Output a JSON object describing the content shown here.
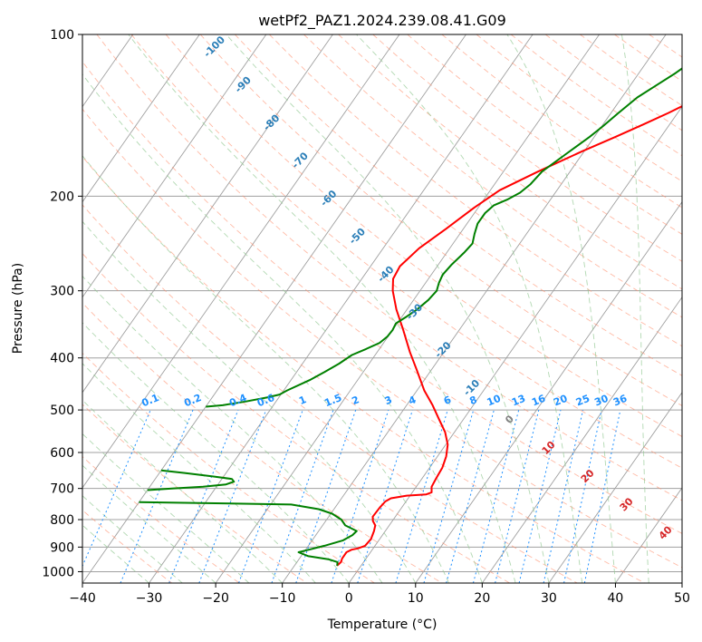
{
  "chart_data": {
    "type": "line",
    "title": "wetPf2_PAZ1.2024.239.08.41.G09",
    "xlabel": "Temperature (°C)",
    "ylabel": "Pressure (hPa)",
    "xlim": [
      -40,
      50
    ],
    "ylim": [
      1050,
      100
    ],
    "y_scale": "log",
    "grid": true,
    "x_ticks": [
      "−40",
      "−30",
      "−20",
      "−10",
      "0",
      "10",
      "20",
      "30",
      "40",
      "50"
    ],
    "y_ticks": [
      "100",
      "200",
      "300",
      "400",
      "500",
      "600",
      "700",
      "800",
      "900",
      "1000"
    ],
    "colors": {
      "temperature": "#ff0000",
      "dewpoint": "#008000",
      "isotherms": "#a0a0a0",
      "dry_adiabats": "#ff8c69",
      "moist_adiabats": "#90c890",
      "mixing_ratio": "#1e90ff",
      "dry_adiabat_labels": "#2c7fb8",
      "wet_adiabat_labels": "#d62728"
    },
    "series": [
      {
        "key": "temperature",
        "points": [
          [
            -3.6,
            975
          ],
          [
            -3.4,
            960
          ],
          [
            -3.6,
            945
          ],
          [
            -3.6,
            920
          ],
          [
            -3.1,
            910
          ],
          [
            -2.3,
            905
          ],
          [
            -1.5,
            895
          ],
          [
            -1.3,
            870
          ],
          [
            -1.7,
            840
          ],
          [
            -2.1,
            820
          ],
          [
            -2.9,
            805
          ],
          [
            -3.4,
            790
          ],
          [
            -3.3,
            760
          ],
          [
            -3.1,
            740
          ],
          [
            -2.6,
            730
          ],
          [
            -0.5,
            722
          ],
          [
            2.3,
            718
          ],
          [
            2.9,
            712
          ],
          [
            2.3,
            695
          ],
          [
            2.1,
            670
          ],
          [
            1.9,
            640
          ],
          [
            1.3,
            610
          ],
          [
            0.3,
            580
          ],
          [
            -1.4,
            550
          ],
          [
            -3.7,
            520
          ],
          [
            -6.1,
            490
          ],
          [
            -8.9,
            460
          ],
          [
            -12.3,
            420
          ],
          [
            -15.1,
            390
          ],
          [
            -18.4,
            355
          ],
          [
            -21.6,
            325
          ],
          [
            -24.1,
            300
          ],
          [
            -25.3,
            285
          ],
          [
            -25.6,
            270
          ],
          [
            -24.6,
            250
          ],
          [
            -22.6,
            230
          ],
          [
            -20.6,
            210
          ],
          [
            -18.6,
            195
          ],
          [
            -14.8,
            180
          ],
          [
            -10.3,
            165
          ],
          [
            -6.8,
            155
          ],
          [
            -3.9,
            147
          ],
          [
            -1.4,
            140
          ],
          [
            1.0,
            133
          ],
          [
            2.5,
            129
          ],
          [
            4.5,
            124
          ],
          [
            7.1,
            118
          ],
          [
            9.3,
            113
          ],
          [
            12.5,
            107
          ],
          [
            13.4,
            105
          ],
          [
            15.2,
            102
          ],
          [
            16.3,
            100
          ]
        ]
      },
      {
        "key": "dewpoint",
        "points": [
          [
            -3.6,
            975
          ],
          [
            -3.9,
            960
          ],
          [
            -5.6,
            948
          ],
          [
            -9.0,
            935
          ],
          [
            -10.8,
            920
          ],
          [
            -9.5,
            910
          ],
          [
            -7.6,
            895
          ],
          [
            -5.4,
            875
          ],
          [
            -4.5,
            855
          ],
          [
            -4.3,
            840
          ],
          [
            -6.6,
            820
          ],
          [
            -7.8,
            800
          ],
          [
            -9.8,
            780
          ],
          [
            -12.3,
            765
          ],
          [
            -16.9,
            750
          ],
          [
            -30.8,
            745
          ],
          [
            -40.0,
            742
          ]
        ]
      },
      {
        "key": "dewpoint",
        "points": [
          [
            -40.0,
            705
          ],
          [
            -36.5,
            700
          ],
          [
            -32.0,
            695
          ],
          [
            -28.8,
            688
          ],
          [
            -27.9,
            680
          ],
          [
            -28.5,
            672
          ],
          [
            -31.5,
            665
          ],
          [
            -36.2,
            655
          ],
          [
            -40.0,
            648
          ]
        ]
      },
      {
        "key": "dewpoint",
        "points": [
          [
            -40.0,
            493
          ],
          [
            -37.6,
            490
          ],
          [
            -34.5,
            482
          ],
          [
            -31.8,
            474
          ],
          [
            -30.2,
            468
          ],
          [
            -29.5,
            460
          ],
          [
            -27.2,
            440
          ],
          [
            -25.8,
            425
          ],
          [
            -24.5,
            410
          ],
          [
            -23.5,
            395
          ],
          [
            -22.0,
            385
          ],
          [
            -20.6,
            375
          ],
          [
            -20.1,
            365
          ],
          [
            -20.0,
            355
          ],
          [
            -20.2,
            345
          ],
          [
            -19.3,
            335
          ],
          [
            -18.5,
            325
          ],
          [
            -17.8,
            312
          ],
          [
            -17.5,
            300
          ],
          [
            -18.0,
            290
          ],
          [
            -18.3,
            280
          ],
          [
            -18.0,
            268
          ],
          [
            -17.4,
            255
          ],
          [
            -17.1,
            245
          ],
          [
            -17.8,
            235
          ],
          [
            -18.4,
            225
          ],
          [
            -18.4,
            215
          ],
          [
            -17.9,
            208
          ],
          [
            -16.5,
            203
          ],
          [
            -15.3,
            197
          ],
          [
            -14.6,
            190
          ],
          [
            -14.2,
            180
          ],
          [
            -12.6,
            168
          ],
          [
            -10.7,
            155
          ],
          [
            -9.8,
            148
          ],
          [
            -8.9,
            140
          ],
          [
            -7.7,
            131
          ],
          [
            -6.0,
            124
          ],
          [
            -4.5,
            118
          ],
          [
            -3.4,
            113
          ],
          [
            -2.6,
            110
          ],
          [
            -2.0,
            107
          ],
          [
            -1.6,
            104
          ],
          [
            -1.0,
            101
          ],
          [
            -0.8,
            100
          ]
        ]
      }
    ],
    "dry_adiabat_labels": [
      "-100",
      "-90",
      "-80",
      "-70",
      "-60",
      "-50",
      "-40",
      "-30",
      "-20",
      "-10"
    ],
    "mixing_ratio_labels": [
      "0.1",
      "0.2",
      "0.4",
      "0.6",
      "1",
      "1.5",
      "2",
      "3",
      "4",
      "6",
      "8",
      "10",
      "13",
      "16",
      "20",
      "25",
      "30",
      "36"
    ],
    "wet_adiabat_labels": [
      "0",
      "10",
      "20",
      "30",
      "40"
    ]
  }
}
